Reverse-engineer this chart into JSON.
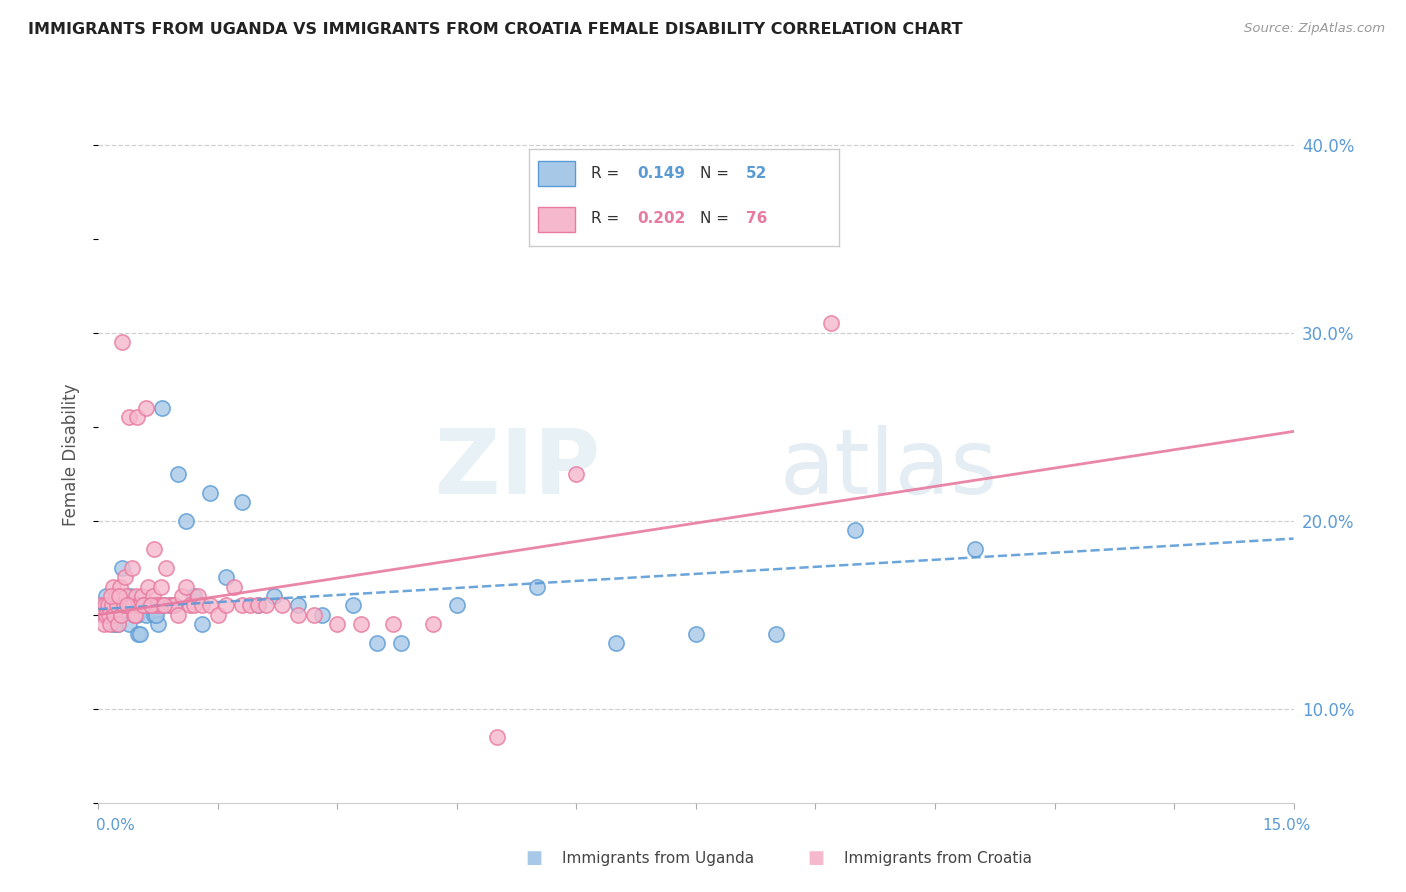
{
  "title": "IMMIGRANTS FROM UGANDA VS IMMIGRANTS FROM CROATIA FEMALE DISABILITY CORRELATION CHART",
  "source": "Source: ZipAtlas.com",
  "ylabel": "Female Disability",
  "watermark_zip": "ZIP",
  "watermark_atlas": "atlas",
  "xlim": [
    0.0,
    15.0
  ],
  "ylim": [
    5.0,
    42.0
  ],
  "yticks": [
    10.0,
    20.0,
    30.0,
    40.0
  ],
  "ytick_labels": [
    "10.0%",
    "20.0%",
    "30.0%",
    "40.0%"
  ],
  "series1_label": "Immigrants from Uganda",
  "series1_R": "0.149",
  "series1_N": "52",
  "series1_color": "#a8c8e8",
  "series1_edge_color": "#5b9bd5",
  "series1_line_color": "#7ab0d8",
  "series2_label": "Immigrants from Croatia",
  "series2_R": "0.202",
  "series2_N": "76",
  "series2_color": "#f5b8cc",
  "series2_edge_color": "#e87aa0",
  "series2_line_color": "#e87aa0",
  "background_color": "#ffffff",
  "grid_color": "#d0d0d0",
  "uganda_x": [
    0.05,
    0.08,
    0.1,
    0.12,
    0.15,
    0.18,
    0.2,
    0.22,
    0.25,
    0.28,
    0.3,
    0.35,
    0.38,
    0.4,
    0.45,
    0.48,
    0.5,
    0.55,
    0.6,
    0.65,
    0.7,
    0.75,
    0.8,
    0.9,
    1.0,
    1.1,
    1.2,
    1.4,
    1.6,
    1.8,
    2.0,
    2.2,
    2.5,
    2.8,
    3.2,
    3.8,
    4.5,
    5.5,
    6.5,
    7.5,
    8.5,
    9.5,
    11.0,
    3.5,
    0.32,
    0.42,
    0.52,
    0.62,
    0.72,
    0.82,
    0.95,
    1.3
  ],
  "uganda_y": [
    15.5,
    15.0,
    16.0,
    15.5,
    15.0,
    14.5,
    15.0,
    14.5,
    14.5,
    15.0,
    17.5,
    15.5,
    14.5,
    16.0,
    15.5,
    15.0,
    14.0,
    15.5,
    15.0,
    15.5,
    15.0,
    14.5,
    26.0,
    15.5,
    22.5,
    20.0,
    16.0,
    21.5,
    17.0,
    21.0,
    15.5,
    16.0,
    15.5,
    15.0,
    15.5,
    13.5,
    15.5,
    16.5,
    13.5,
    14.0,
    14.0,
    19.5,
    18.5,
    13.5,
    15.5,
    15.5,
    14.0,
    15.5,
    15.0,
    15.5,
    15.5,
    14.5
  ],
  "croatia_x": [
    0.03,
    0.05,
    0.07,
    0.08,
    0.1,
    0.12,
    0.13,
    0.15,
    0.17,
    0.18,
    0.2,
    0.22,
    0.23,
    0.25,
    0.27,
    0.28,
    0.3,
    0.32,
    0.33,
    0.35,
    0.37,
    0.38,
    0.4,
    0.42,
    0.43,
    0.45,
    0.47,
    0.48,
    0.5,
    0.52,
    0.55,
    0.57,
    0.6,
    0.62,
    0.65,
    0.68,
    0.7,
    0.72,
    0.75,
    0.78,
    0.8,
    0.85,
    0.9,
    0.95,
    1.0,
    1.05,
    1.1,
    1.15,
    1.2,
    1.25,
    1.3,
    1.4,
    1.5,
    1.6,
    1.7,
    1.8,
    1.9,
    2.0,
    2.1,
    2.3,
    2.5,
    2.7,
    3.0,
    3.3,
    3.7,
    4.2,
    5.0,
    6.0,
    0.16,
    0.26,
    0.36,
    0.46,
    0.56,
    0.66,
    0.82,
    9.2
  ],
  "croatia_y": [
    15.5,
    15.0,
    14.5,
    15.5,
    15.0,
    15.5,
    15.0,
    14.5,
    15.5,
    16.5,
    15.0,
    16.0,
    15.5,
    14.5,
    16.5,
    15.0,
    29.5,
    15.5,
    17.0,
    16.0,
    15.5,
    25.5,
    15.5,
    17.5,
    15.5,
    15.0,
    16.0,
    25.5,
    15.5,
    15.5,
    16.0,
    15.5,
    26.0,
    16.5,
    15.5,
    16.0,
    18.5,
    15.5,
    15.5,
    16.5,
    15.5,
    17.5,
    15.5,
    15.5,
    15.0,
    16.0,
    16.5,
    15.5,
    15.5,
    16.0,
    15.5,
    15.5,
    15.0,
    15.5,
    16.5,
    15.5,
    15.5,
    15.5,
    15.5,
    15.5,
    15.0,
    15.0,
    14.5,
    14.5,
    14.5,
    14.5,
    8.5,
    22.5,
    16.0,
    16.0,
    15.5,
    15.0,
    15.5,
    15.5,
    15.5,
    30.5
  ]
}
